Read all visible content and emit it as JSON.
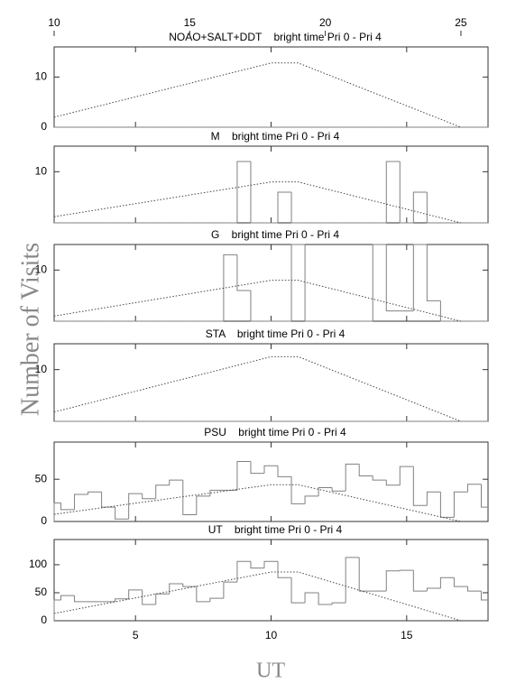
{
  "ylabel": "Number of Visits",
  "xlabel": "UT",
  "chart_data": [
    {
      "type": "histogram",
      "title": "NOAO+SALT+DDT    bright time Pri 0 - Pri 4",
      "xlim": [
        2,
        18
      ],
      "x2lim": [
        10,
        26
      ],
      "x2ticks": [
        10,
        15,
        20,
        25
      ],
      "ylim": [
        0,
        16
      ],
      "yticks": [
        0,
        10
      ],
      "bins": [
        2,
        2.25,
        2.75,
        3.25,
        3.75,
        4.25,
        4.75,
        5.25,
        5.75,
        6.25,
        6.75,
        7.25,
        7.75,
        8.25,
        8.75,
        9.25,
        9.75,
        10.25,
        10.75,
        11.25,
        11.75,
        12.25,
        12.75,
        13.25,
        13.75,
        14.25,
        14.75,
        15.25,
        15.75,
        16.25,
        16.75,
        17.25,
        17.75,
        18
      ],
      "values": [
        0,
        0,
        0,
        0,
        0,
        0,
        0,
        0,
        0,
        0,
        0,
        0,
        0,
        0,
        0,
        0,
        0,
        0,
        0,
        0,
        0,
        0,
        0,
        0,
        0,
        0,
        0,
        0,
        0,
        0,
        0,
        0,
        0
      ],
      "color": "#808080",
      "line_x": [
        2,
        10,
        11,
        17
      ],
      "line_values": [
        2,
        12.8,
        12.8,
        0
      ],
      "line_color": "#444444"
    },
    {
      "type": "histogram",
      "title": "M    bright time Pri 0 - Pri 4",
      "xlim": [
        2,
        18
      ],
      "ylim": [
        0,
        15
      ],
      "yticks": [
        10
      ],
      "bins": [
        2,
        2.25,
        2.75,
        3.25,
        3.75,
        4.25,
        4.75,
        5.25,
        5.75,
        6.25,
        6.75,
        7.25,
        7.75,
        8.25,
        8.75,
        9.25,
        9.75,
        10.25,
        10.75,
        11.25,
        11.75,
        12.25,
        12.75,
        13.25,
        13.75,
        14.25,
        14.75,
        15.25,
        15.75,
        16.25,
        16.75,
        17.25,
        17.75,
        18
      ],
      "values": [
        0,
        0,
        0,
        0,
        0,
        0,
        0,
        0,
        0,
        0,
        0,
        0,
        0,
        0,
        12,
        0,
        0,
        6,
        0,
        0,
        0,
        0,
        0,
        0,
        0,
        12,
        0,
        6,
        0,
        0,
        0,
        0,
        0
      ],
      "color": "#808080",
      "line_x": [
        2,
        10,
        11,
        17
      ],
      "line_values": [
        1.2,
        8,
        8,
        0
      ],
      "line_color": "#444444"
    },
    {
      "type": "histogram",
      "title": "G    bright time Pri 0 - Pri 4",
      "xlim": [
        2,
        18
      ],
      "ylim": [
        0,
        15
      ],
      "yticks": [
        10
      ],
      "bins": [
        2,
        2.25,
        2.75,
        3.25,
        3.75,
        4.25,
        4.75,
        5.25,
        5.75,
        6.25,
        6.75,
        7.25,
        7.75,
        8.25,
        8.75,
        9.25,
        9.75,
        10.25,
        10.75,
        11.25,
        11.75,
        12.25,
        12.75,
        13.25,
        13.75,
        14.25,
        14.75,
        15.25,
        15.75,
        16.25,
        16.75,
        17.25,
        17.75,
        18
      ],
      "values": [
        0,
        0,
        0,
        0,
        0,
        0,
        0,
        0,
        0,
        0,
        0,
        0,
        0,
        13,
        6,
        0,
        0,
        0,
        15,
        0,
        0,
        0,
        0,
        0,
        15,
        2,
        2,
        15,
        4,
        0,
        0,
        0,
        0
      ],
      "color": "#808080",
      "line_x": [
        2,
        10,
        11,
        17
      ],
      "line_values": [
        1,
        8,
        8,
        0
      ],
      "line_color": "#444444"
    },
    {
      "type": "histogram",
      "title": "STA    bright time Pri 0 - Pri 4",
      "xlim": [
        2,
        18
      ],
      "ylim": [
        0,
        15
      ],
      "yticks": [
        10
      ],
      "bins": [
        2,
        2.25,
        2.75,
        3.25,
        3.75,
        4.25,
        4.75,
        5.25,
        5.75,
        6.25,
        6.75,
        7.25,
        7.75,
        8.25,
        8.75,
        9.25,
        9.75,
        10.25,
        10.75,
        11.25,
        11.75,
        12.25,
        12.75,
        13.25,
        13.75,
        14.25,
        14.75,
        15.25,
        15.75,
        16.25,
        16.75,
        17.25,
        17.75,
        18
      ],
      "values": [
        0,
        0,
        0,
        0,
        0,
        0,
        0,
        0,
        0,
        0,
        0,
        0,
        0,
        0,
        0,
        0,
        0,
        0,
        0,
        0,
        0,
        0,
        0,
        0,
        0,
        0,
        0,
        0,
        0,
        0,
        0,
        0,
        0
      ],
      "color": "#808080",
      "line_x": [
        2,
        10,
        11,
        17
      ],
      "line_values": [
        1.8,
        12.5,
        12.5,
        0
      ],
      "line_color": "#444444"
    },
    {
      "type": "histogram",
      "title": "PSU    bright time Pri 0 - Pri 4",
      "xlim": [
        2,
        18
      ],
      "ylim": [
        0,
        94
      ],
      "yticks": [
        0,
        50
      ],
      "bins": [
        2,
        2.25,
        2.75,
        3.25,
        3.75,
        4.25,
        4.75,
        5.25,
        5.75,
        6.25,
        6.75,
        7.25,
        7.75,
        8.25,
        8.75,
        9.25,
        9.75,
        10.25,
        10.75,
        11.25,
        11.75,
        12.25,
        12.75,
        13.25,
        13.75,
        14.25,
        14.75,
        15.25,
        15.75,
        16.25,
        16.75,
        17.25,
        17.75,
        18
      ],
      "values": [
        22,
        14,
        32,
        35,
        17,
        3,
        33,
        27,
        43,
        49,
        8,
        30,
        37,
        37,
        71,
        57,
        66,
        53,
        21,
        30,
        40,
        36,
        68,
        54,
        49,
        43,
        65,
        19,
        35,
        5,
        35,
        44,
        17
      ],
      "color": "#808080",
      "line_x": [
        2,
        10,
        11,
        17
      ],
      "line_values": [
        8.5,
        43.5,
        43.5,
        0
      ],
      "line_color": "#444444"
    },
    {
      "type": "histogram",
      "title": "UT    bright time Pri 0 - Pri 4",
      "xlim": [
        2,
        18
      ],
      "xticks": [
        5,
        10,
        15
      ],
      "ylim": [
        0,
        145
      ],
      "yticks": [
        0,
        50,
        100
      ],
      "bins": [
        2,
        2.25,
        2.75,
        3.25,
        3.75,
        4.25,
        4.75,
        5.25,
        5.75,
        6.25,
        6.75,
        7.25,
        7.75,
        8.25,
        8.75,
        9.25,
        9.75,
        10.25,
        10.75,
        11.25,
        11.75,
        12.25,
        12.75,
        13.25,
        13.75,
        14.25,
        14.75,
        15.25,
        15.75,
        16.25,
        16.75,
        17.25,
        17.75,
        18
      ],
      "values": [
        37,
        45,
        34,
        34,
        34,
        39,
        55,
        29,
        48,
        66,
        61,
        34,
        40,
        69,
        106,
        94,
        106,
        77,
        32,
        50,
        29,
        32,
        113,
        53,
        53,
        89,
        90,
        53,
        58,
        77,
        61,
        53,
        37
      ],
      "color": "#808080",
      "line_x": [
        2,
        10,
        11,
        17
      ],
      "line_values": [
        13,
        87,
        87,
        0
      ],
      "line_color": "#444444"
    }
  ]
}
